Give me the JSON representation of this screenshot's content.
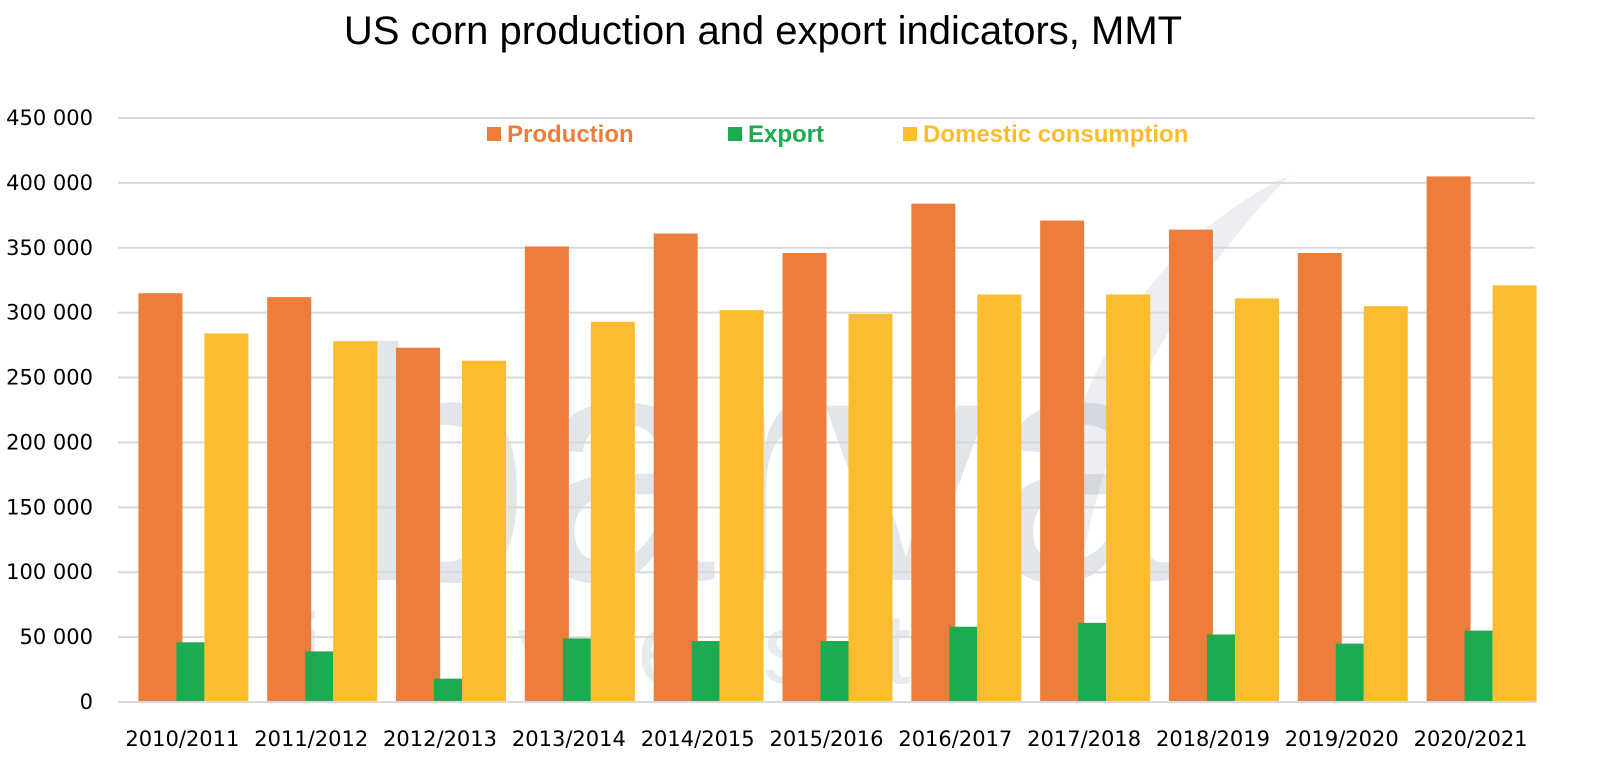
{
  "chart_data": {
    "type": "bar",
    "title": "US corn production and export indicators, MMT",
    "xlabel": "",
    "ylabel": "",
    "ylim": [
      0,
      450000
    ],
    "yticks": [
      0,
      50000,
      100000,
      150000,
      200000,
      250000,
      300000,
      350000,
      400000,
      450000
    ],
    "ytick_labels": [
      "0",
      "50 000",
      "100 000",
      "150 000",
      "200 000",
      "250 000",
      "300 000",
      "350 000",
      "400 000",
      "450 000"
    ],
    "grid": true,
    "legend_position": "top",
    "categories": [
      "2010/2011",
      "2011/2012",
      "2012/2013",
      "2013/2014",
      "2014/2015",
      "2015/2016",
      "2016/2017",
      "2017/2018",
      "2018/2019",
      "2019/2020",
      "2020/2021"
    ],
    "series": [
      {
        "name": "Production",
        "color": "#ED7D3A",
        "values": [
          315000,
          312000,
          273000,
          351000,
          361000,
          346000,
          384000,
          371000,
          364000,
          346000,
          405000
        ]
      },
      {
        "name": "Export",
        "color": "#1EAA50",
        "values": [
          46000,
          39000,
          18000,
          49000,
          47000,
          47000,
          58000,
          61000,
          52000,
          45000,
          55000
        ]
      },
      {
        "name": "Domestic consumption",
        "color": "#FBBC2F",
        "values": [
          284000,
          278000,
          263000,
          293000,
          302000,
          299000,
          314000,
          314000,
          311000,
          305000,
          321000
        ]
      }
    ]
  },
  "watermark": {
    "brand": "barva",
    "sub": "invest"
  }
}
